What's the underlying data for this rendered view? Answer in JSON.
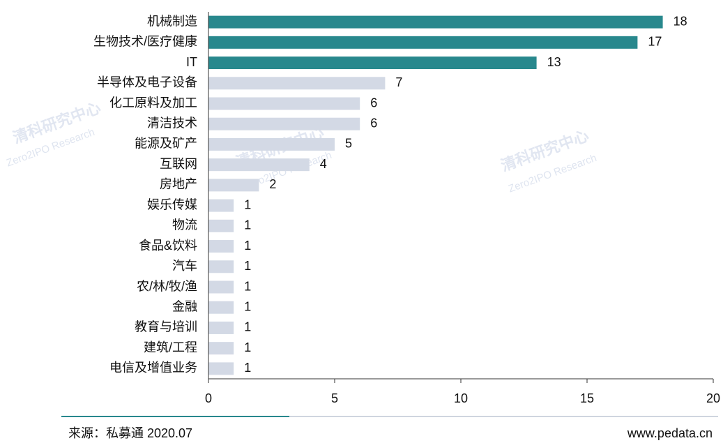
{
  "chart_data": {
    "type": "hbar",
    "categories": [
      "机械制造",
      "生物技术/医疗健康",
      "IT",
      "半导体及电子设备",
      "化工原料及加工",
      "清洁技术",
      "能源及矿产",
      "互联网",
      "房地产",
      "娱乐传媒",
      "物流",
      "食品&饮料",
      "汽车",
      "农/林/牧/渔",
      "金融",
      "教育与培训",
      "建筑/工程",
      "电信及增值业务"
    ],
    "values": [
      18,
      17,
      13,
      7,
      6,
      6,
      5,
      4,
      2,
      1,
      1,
      1,
      1,
      1,
      1,
      1,
      1,
      1
    ],
    "colors": [
      "#28888d",
      "#28888d",
      "#28888d",
      "#d3d9e5",
      "#d3d9e5",
      "#d3d9e5",
      "#d3d9e5",
      "#d3d9e5",
      "#d3d9e5",
      "#d3d9e5",
      "#d3d9e5",
      "#d3d9e5",
      "#d3d9e5",
      "#d3d9e5",
      "#d3d9e5",
      "#d3d9e5",
      "#d3d9e5",
      "#d3d9e5"
    ],
    "xlim": [
      0,
      20
    ],
    "xticks": [
      0,
      5,
      10,
      15,
      20
    ]
  },
  "watermark": [
    "清科研究中心",
    "Zero2IPO Research"
  ],
  "footer": {
    "source": "来源：私募通 2020.07",
    "website": "www.pedata.cn"
  }
}
